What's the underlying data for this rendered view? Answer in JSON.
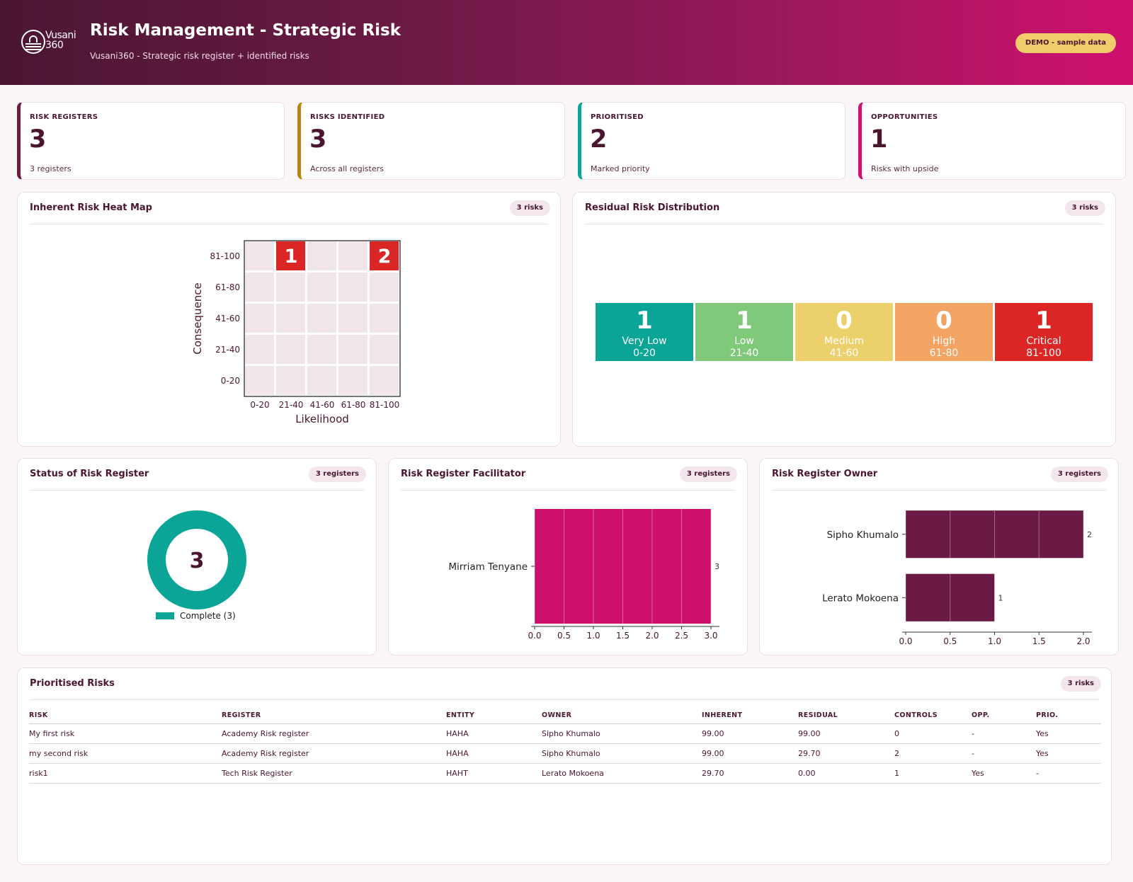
{
  "header": {
    "logo_text_1": "Vusani",
    "logo_text_2": "360",
    "title": "Risk Management - Strategic Risk",
    "subtitle": "Vusani360  -  Strategic risk register + identified risks",
    "demo_badge": "DEMO  -  sample data"
  },
  "kpis": [
    {
      "label": "RISK REGISTERS",
      "value": "3",
      "note": "3 registers",
      "color": "#6a1a45"
    },
    {
      "label": "RISKS IDENTIFIED",
      "value": "3",
      "note": "Across all registers",
      "color": "#b8860b"
    },
    {
      "label": "PRIORITISED",
      "value": "2",
      "note": "Marked priority",
      "color": "#0aa596"
    },
    {
      "label": "OPPORTUNITIES",
      "value": "1",
      "note": "Risks with upside",
      "color": "#d0106e"
    }
  ],
  "heatmap": {
    "title": "Inherent Risk Heat Map",
    "badge": "3 risks",
    "chart_data": {
      "type": "heatmap",
      "xlabel": "Likelihood",
      "ylabel": "Consequence",
      "x_categories": [
        "0-20",
        "21-40",
        "41-60",
        "61-80",
        "81-100"
      ],
      "y_categories": [
        "0-20",
        "21-40",
        "41-60",
        "61-80",
        "81-100"
      ],
      "cells": [
        {
          "x": "21-40",
          "y": "81-100",
          "value": 1
        },
        {
          "x": "81-100",
          "y": "81-100",
          "value": 2
        }
      ]
    }
  },
  "residual": {
    "title": "Residual Risk Distribution",
    "badge": "3 risks",
    "bands": [
      {
        "count": "1",
        "label": "Very Low",
        "range": "0-20",
        "color": "#0aa596"
      },
      {
        "count": "1",
        "label": "Low",
        "range": "21-40",
        "color": "#80c97b"
      },
      {
        "count": "0",
        "label": "Medium",
        "range": "41-60",
        "color": "#ecd06b"
      },
      {
        "count": "0",
        "label": "High",
        "range": "61-80",
        "color": "#f4a462"
      },
      {
        "count": "1",
        "label": "Critical",
        "range": "81-100",
        "color": "#dc2626"
      }
    ]
  },
  "status": {
    "title": "Status of Risk Register",
    "badge": "3 registers",
    "chart_data": {
      "type": "pie",
      "center_value": "3",
      "slices": [
        {
          "label": "Complete (3)",
          "value": 3,
          "color": "#0aa596"
        }
      ]
    }
  },
  "facilitator": {
    "title": "Risk Register Facilitator",
    "badge": "3 registers",
    "chart_data": {
      "type": "bar",
      "orientation": "horizontal",
      "categories": [
        "Mirriam Tenyane"
      ],
      "values": [
        3
      ],
      "xlim": [
        0,
        3
      ],
      "xticks": [
        "0.0",
        "0.5",
        "1.0",
        "1.5",
        "2.0",
        "2.5",
        "3.0"
      ],
      "color": "#cc106b"
    }
  },
  "owner": {
    "title": "Risk Register Owner",
    "badge": "3 registers",
    "chart_data": {
      "type": "bar",
      "orientation": "horizontal",
      "categories": [
        "Sipho Khumalo",
        "Lerato Mokoena"
      ],
      "values": [
        2,
        1
      ],
      "xlim": [
        0,
        2
      ],
      "xticks": [
        "0.0",
        "0.5",
        "1.0",
        "1.5",
        "2.0"
      ],
      "color": "#6a1a45"
    }
  },
  "prioritised": {
    "title": "Prioritised Risks",
    "badge": "3 risks",
    "columns": [
      "RISK",
      "REGISTER",
      "ENTITY",
      "OWNER",
      "INHERENT",
      "RESIDUAL",
      "CONTROLS",
      "OPP.",
      "PRIO."
    ],
    "rows": [
      [
        "My first risk",
        "Academy Risk register",
        "HAHA",
        "Sipho Khumalo",
        "99.00",
        "99.00",
        "0",
        "-",
        "Yes"
      ],
      [
        "my second risk",
        "Academy Risk register",
        "HAHA",
        "Sipho Khumalo",
        "99.00",
        "29.70",
        "2",
        "-",
        "Yes"
      ],
      [
        "risk1",
        "Tech Risk Register",
        "HAHT",
        "Lerato Mokoena",
        "29.70",
        "0.00",
        "1",
        "Yes",
        "-"
      ]
    ]
  }
}
